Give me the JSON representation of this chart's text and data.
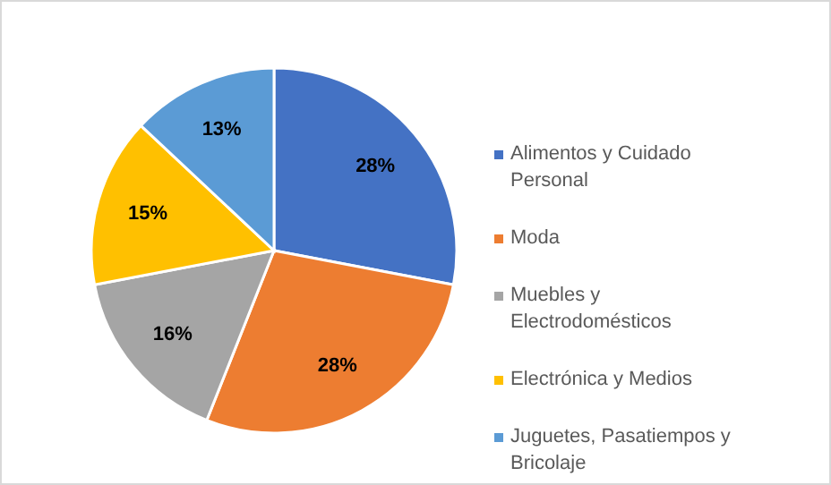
{
  "chart_data": {
    "type": "pie",
    "categories": [
      "Alimentos y Cuidado Personal",
      "Moda",
      "Muebles y Electrodomésticos",
      "Electrónica y Medios",
      "Juguetes, Pasatiempos y Bricolaje"
    ],
    "values": [
      28,
      28,
      16,
      15,
      13
    ],
    "colors": [
      "#4472c4",
      "#ed7d31",
      "#a5a5a5",
      "#ffc000",
      "#5b9bd5"
    ],
    "value_labels": [
      "28%",
      "28%",
      "16%",
      "15%",
      "13%"
    ],
    "legend": "right"
  }
}
